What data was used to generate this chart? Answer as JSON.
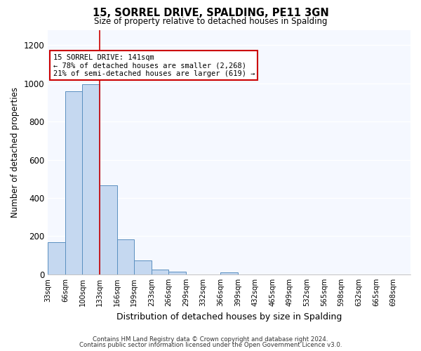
{
  "title": "15, SORREL DRIVE, SPALDING, PE11 3GN",
  "subtitle": "Size of property relative to detached houses in Spalding",
  "xlabel": "Distribution of detached houses by size in Spalding",
  "ylabel": "Number of detached properties",
  "bar_labels": [
    "33sqm",
    "66sqm",
    "100sqm",
    "133sqm",
    "166sqm",
    "199sqm",
    "233sqm",
    "266sqm",
    "299sqm",
    "332sqm",
    "366sqm",
    "399sqm",
    "432sqm",
    "465sqm",
    "499sqm",
    "532sqm",
    "565sqm",
    "598sqm",
    "632sqm",
    "665sqm",
    "698sqm"
  ],
  "bar_values": [
    170,
    960,
    995,
    465,
    185,
    75,
    25,
    15,
    0,
    0,
    10,
    0,
    0,
    0,
    0,
    0,
    0,
    0,
    0,
    0,
    0
  ],
  "bar_color": "#c5d8f0",
  "bar_edge_color": "#5a8fc0",
  "red_line_x": 3,
  "red_line_color": "#cc0000",
  "ylim": [
    0,
    1280
  ],
  "yticks": [
    0,
    200,
    400,
    600,
    800,
    1000,
    1200
  ],
  "annotation_title": "15 SORREL DRIVE: 141sqm",
  "annotation_line1": "← 78% of detached houses are smaller (2,268)",
  "annotation_line2": "21% of semi-detached houses are larger (619) →",
  "annotation_box_facecolor": "#ffffff",
  "annotation_box_edgecolor": "#cc0000",
  "footer_line1": "Contains HM Land Registry data © Crown copyright and database right 2024.",
  "footer_line2": "Contains public sector information licensed under the Open Government Licence v3.0.",
  "background_color": "#ffffff",
  "plot_bg_color": "#f5f8ff",
  "grid_color": "#ffffff"
}
